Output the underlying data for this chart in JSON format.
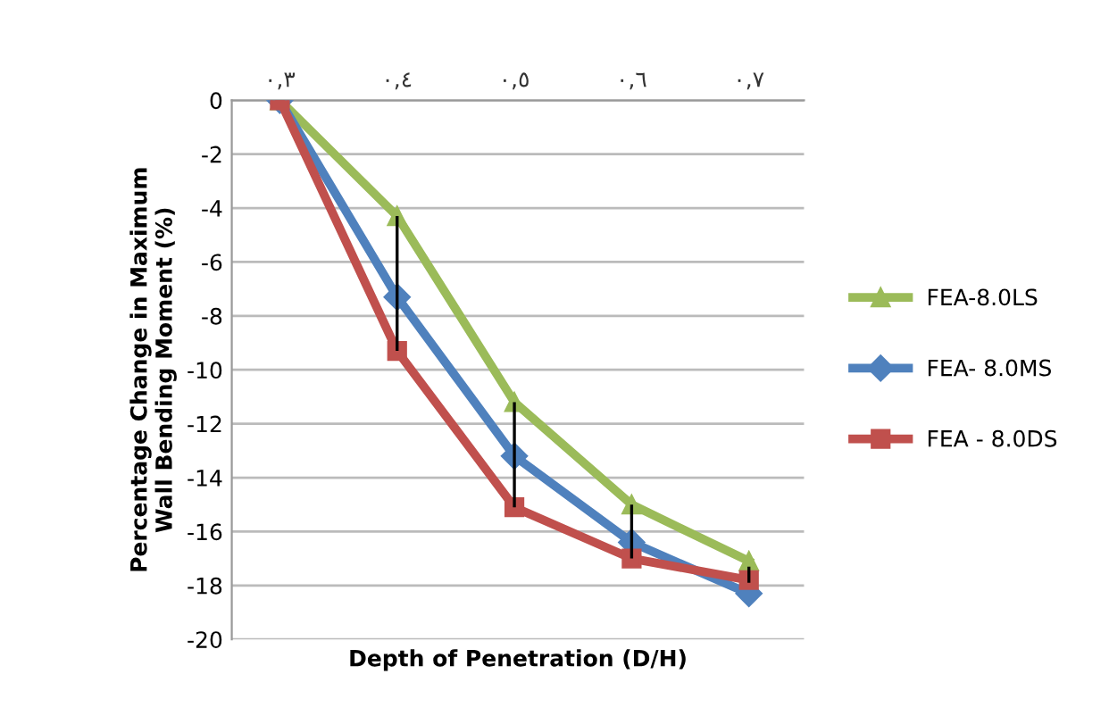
{
  "chart_data": {
    "type": "line",
    "xlabel": "Depth of Penetration (D/H)",
    "ylabel": "Percentage Change in Maximum\nWall Bending Moment (%)",
    "categories": [
      "٠,٣",
      "٠,٤",
      "٠,٥",
      "٠,٦",
      "٠,٧"
    ],
    "ylim": [
      -20,
      0
    ],
    "yticks": [
      -20,
      -18,
      -16,
      -14,
      -12,
      -10,
      -8,
      -6,
      -4,
      -2,
      0
    ],
    "grid": "y",
    "legend": "right",
    "series": [
      {
        "name": "FEA-8.0LS",
        "color": "#9bbb59",
        "marker": "triangle",
        "values": [
          0,
          -4.3,
          -11.2,
          -15.0,
          -17.1
        ]
      },
      {
        "name": "FEA- 8.0MS",
        "color": "#4f81bd",
        "marker": "diamond",
        "values": [
          0,
          -7.3,
          -13.2,
          -16.4,
          -18.3
        ]
      },
      {
        "name": "FEA - 8.0DS",
        "color": "#c0504d",
        "marker": "square",
        "values": [
          0,
          -9.3,
          -15.1,
          -17.0,
          -17.8
        ],
        "errors": [
          null,
          [
            -9.3,
            -4.3
          ],
          [
            -15.1,
            -11.2
          ],
          [
            -17.0,
            -15.0
          ],
          [
            -17.9,
            -17.3
          ]
        ]
      }
    ]
  }
}
